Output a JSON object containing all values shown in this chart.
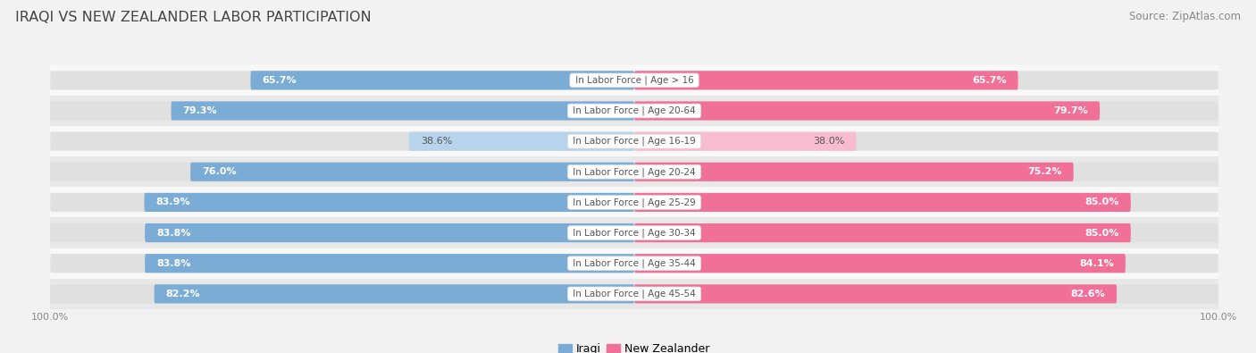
{
  "title": "IRAQI VS NEW ZEALANDER LABOR PARTICIPATION",
  "source": "Source: ZipAtlas.com",
  "categories": [
    "In Labor Force | Age > 16",
    "In Labor Force | Age 20-64",
    "In Labor Force | Age 16-19",
    "In Labor Force | Age 20-24",
    "In Labor Force | Age 25-29",
    "In Labor Force | Age 30-34",
    "In Labor Force | Age 35-44",
    "In Labor Force | Age 45-54"
  ],
  "iraqi_values": [
    65.7,
    79.3,
    38.6,
    76.0,
    83.9,
    83.8,
    83.8,
    82.2
  ],
  "nz_values": [
    65.7,
    79.7,
    38.0,
    75.2,
    85.0,
    85.0,
    84.1,
    82.6
  ],
  "iraqi_color": "#7aacd6",
  "iraqi_color_light": "#b8d4ec",
  "nz_color": "#f07098",
  "nz_color_light": "#f8bcd0",
  "bg_color": "#f2f2f2",
  "row_bg_even": "#f8f8f8",
  "row_bg_odd": "#e8e8e8",
  "track_color": "#e0e0e0",
  "bar_height": 0.62,
  "max_val": 100.0,
  "title_fontsize": 11.5,
  "source_fontsize": 8.5,
  "bar_label_fontsize": 8,
  "category_fontsize": 7.5,
  "legend_fontsize": 9,
  "axis_label_fontsize": 8,
  "light_threshold": 50
}
